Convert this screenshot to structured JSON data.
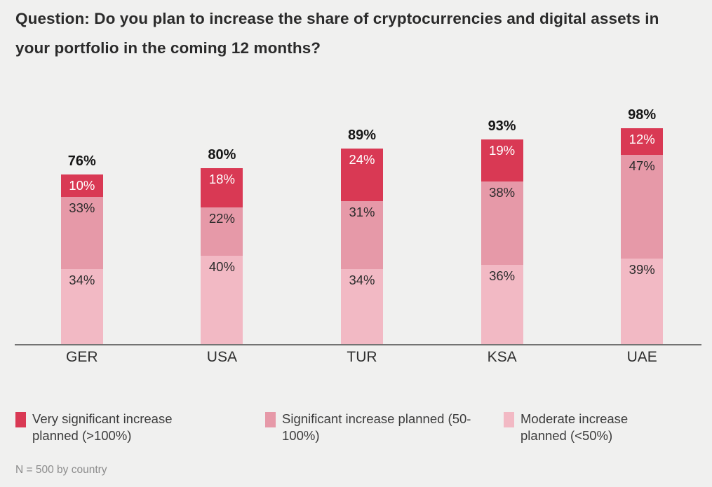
{
  "chart_data": {
    "type": "bar",
    "stacked": true,
    "title": "Question: Do you plan to increase the share of cryptocurrencies and digital assets in your portfolio in the coming 12 months?",
    "categories": [
      "GER",
      "USA",
      "TUR",
      "KSA",
      "UAE"
    ],
    "totals": [
      76,
      80,
      89,
      93,
      98
    ],
    "value_suffix": "%",
    "series": [
      {
        "name": "Very significant increase planned (>100%)",
        "color": "#D93954",
        "label_color": "#FFFFFF",
        "values": [
          10,
          18,
          24,
          19,
          12
        ]
      },
      {
        "name": "Significant increase planned (50-100%)",
        "color": "#E699A8",
        "label_color": "#2B2B2B",
        "values": [
          33,
          22,
          31,
          38,
          47
        ]
      },
      {
        "name": "Moderate increase planned (<50%)",
        "color": "#F2B9C4",
        "label_color": "#2B2B2B",
        "values": [
          34,
          40,
          34,
          36,
          39
        ]
      }
    ],
    "ylim": [
      0,
      100
    ],
    "grid": false,
    "legend_position": "bottom",
    "note": "N = 500 by country",
    "colors": {
      "background": "#F0F0EF",
      "axis_line": "#737373",
      "title_text": "#2B2B2B",
      "total_label_text": "#161616",
      "category_text": "#2F2F2F",
      "legend_text": "#3C3C3C",
      "note_text": "#8C8C8C"
    }
  }
}
